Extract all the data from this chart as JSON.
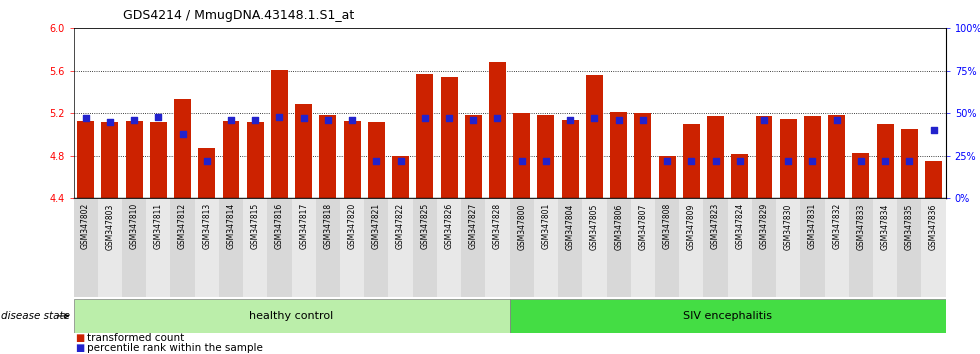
{
  "title": "GDS4214 / MmugDNA.43148.1.S1_at",
  "samples": [
    "GSM347802",
    "GSM347803",
    "GSM347810",
    "GSM347811",
    "GSM347812",
    "GSM347813",
    "GSM347814",
    "GSM347815",
    "GSM347816",
    "GSM347817",
    "GSM347818",
    "GSM347820",
    "GSM347821",
    "GSM347822",
    "GSM347825",
    "GSM347826",
    "GSM347827",
    "GSM347828",
    "GSM347800",
    "GSM347801",
    "GSM347804",
    "GSM347805",
    "GSM347806",
    "GSM347807",
    "GSM347808",
    "GSM347809",
    "GSM347823",
    "GSM347824",
    "GSM347829",
    "GSM347830",
    "GSM347831",
    "GSM347832",
    "GSM347833",
    "GSM347834",
    "GSM347835",
    "GSM347836"
  ],
  "bar_values": [
    5.13,
    5.12,
    5.13,
    5.12,
    5.33,
    4.87,
    5.13,
    5.12,
    5.61,
    5.29,
    5.18,
    5.13,
    5.12,
    4.8,
    5.57,
    5.54,
    5.18,
    5.68,
    5.2,
    5.18,
    5.14,
    5.56,
    5.21,
    5.2,
    4.8,
    5.1,
    5.17,
    4.82,
    5.17,
    5.15,
    5.17,
    5.18,
    4.83,
    5.1,
    5.05,
    4.75
  ],
  "percentile_values": [
    47,
    45,
    46,
    48,
    38,
    22,
    46,
    46,
    48,
    47,
    46,
    46,
    22,
    22,
    47,
    47,
    46,
    47,
    22,
    22,
    46,
    47,
    46,
    46,
    22,
    22,
    22,
    22,
    46,
    22,
    22,
    46,
    22,
    22,
    22,
    40
  ],
  "healthy_count": 18,
  "ylim_left": [
    4.4,
    6.0
  ],
  "yticks_left": [
    4.4,
    4.8,
    5.2,
    5.6,
    6.0
  ],
  "ylim_right": [
    0,
    100
  ],
  "yticks_right": [
    0,
    25,
    50,
    75,
    100
  ],
  "ytick_labels_right": [
    "0%",
    "25%",
    "50%",
    "75%",
    "100%"
  ],
  "bar_color": "#cc2200",
  "dot_color": "#2222cc",
  "bar_width": 0.7,
  "healthy_color": "#bbeeaa",
  "siv_color": "#44dd44",
  "healthy_label": "healthy control",
  "siv_label": "SIV encephalitis",
  "disease_state_label": "disease state",
  "legend1": "transformed count",
  "legend2": "percentile rank within the sample",
  "col_bg_even": "#d8d8d8",
  "col_bg_odd": "#e8e8e8"
}
